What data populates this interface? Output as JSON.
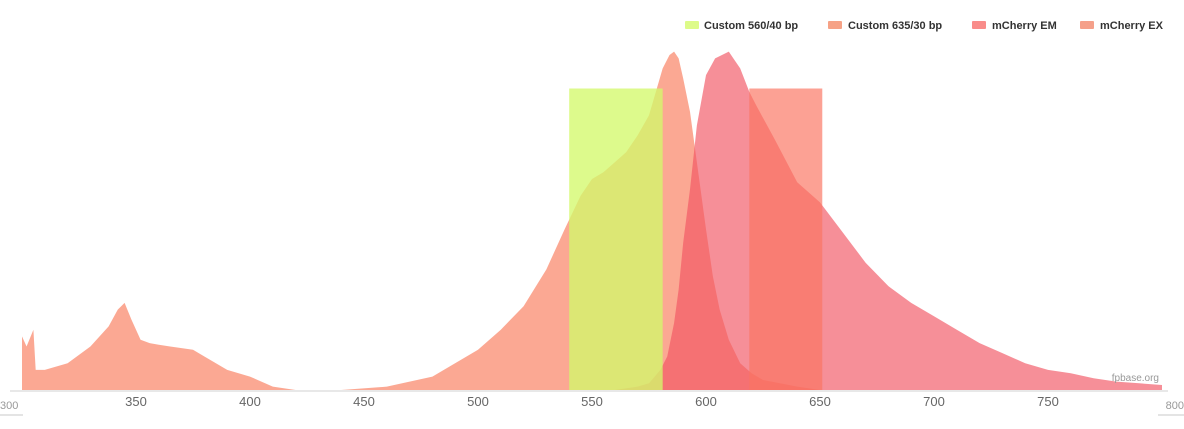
{
  "chart_data": {
    "type": "area",
    "title": "",
    "xlabel": "",
    "ylabel": "",
    "xlim": [
      300,
      800
    ],
    "ylim": [
      0,
      1
    ],
    "x_ticks": [
      350,
      400,
      450,
      500,
      550,
      600,
      650,
      700,
      750
    ],
    "x_edge_ticks": [
      300,
      800
    ],
    "grid": false,
    "legend_position": "top-right",
    "watermark": "fpbase.org",
    "series": [
      {
        "name": "mCherry EX",
        "kind": "curve",
        "color": "#f9866a",
        "opacity": 0.72,
        "points": [
          [
            300,
            0.16
          ],
          [
            302,
            0.13
          ],
          [
            305,
            0.18
          ],
          [
            306,
            0.06
          ],
          [
            310,
            0.06
          ],
          [
            320,
            0.08
          ],
          [
            330,
            0.13
          ],
          [
            338,
            0.19
          ],
          [
            342,
            0.24
          ],
          [
            345,
            0.26
          ],
          [
            348,
            0.21
          ],
          [
            352,
            0.15
          ],
          [
            356,
            0.14
          ],
          [
            360,
            0.135
          ],
          [
            365,
            0.13
          ],
          [
            375,
            0.12
          ],
          [
            380,
            0.1
          ],
          [
            390,
            0.06
          ],
          [
            400,
            0.04
          ],
          [
            410,
            0.01
          ],
          [
            420,
            0.0
          ],
          [
            440,
            0.0
          ],
          [
            460,
            0.01
          ],
          [
            480,
            0.04
          ],
          [
            500,
            0.12
          ],
          [
            510,
            0.18
          ],
          [
            520,
            0.25
          ],
          [
            530,
            0.36
          ],
          [
            538,
            0.48
          ],
          [
            545,
            0.58
          ],
          [
            550,
            0.63
          ],
          [
            555,
            0.65
          ],
          [
            560,
            0.68
          ],
          [
            565,
            0.71
          ],
          [
            570,
            0.76
          ],
          [
            575,
            0.82
          ],
          [
            578,
            0.89
          ],
          [
            581,
            0.96
          ],
          [
            584,
            1.0
          ],
          [
            586,
            1.01
          ],
          [
            588,
            0.99
          ],
          [
            590,
            0.93
          ],
          [
            593,
            0.83
          ],
          [
            596,
            0.68
          ],
          [
            600,
            0.48
          ],
          [
            603,
            0.34
          ],
          [
            606,
            0.24
          ],
          [
            610,
            0.15
          ],
          [
            615,
            0.08
          ],
          [
            620,
            0.05
          ],
          [
            625,
            0.03
          ],
          [
            640,
            0.01
          ],
          [
            650,
            0.0
          ]
        ]
      },
      {
        "name": "mCherry EM",
        "kind": "curve",
        "color": "#f25562",
        "opacity": 0.66,
        "points": [
          [
            540,
            0.0
          ],
          [
            560,
            0.0
          ],
          [
            570,
            0.01
          ],
          [
            575,
            0.02
          ],
          [
            580,
            0.06
          ],
          [
            583,
            0.1
          ],
          [
            586,
            0.2
          ],
          [
            588,
            0.3
          ],
          [
            590,
            0.44
          ],
          [
            593,
            0.6
          ],
          [
            596,
            0.79
          ],
          [
            600,
            0.94
          ],
          [
            604,
            0.99
          ],
          [
            607,
            1.0
          ],
          [
            610,
            1.01
          ],
          [
            612,
            0.99
          ],
          [
            615,
            0.96
          ],
          [
            619,
            0.89
          ],
          [
            622,
            0.85
          ],
          [
            630,
            0.75
          ],
          [
            640,
            0.62
          ],
          [
            650,
            0.56
          ],
          [
            660,
            0.47
          ],
          [
            670,
            0.38
          ],
          [
            680,
            0.31
          ],
          [
            690,
            0.26
          ],
          [
            700,
            0.22
          ],
          [
            710,
            0.18
          ],
          [
            720,
            0.14
          ],
          [
            730,
            0.11
          ],
          [
            740,
            0.08
          ],
          [
            750,
            0.06
          ],
          [
            760,
            0.05
          ],
          [
            770,
            0.035
          ],
          [
            780,
            0.025
          ],
          [
            790,
            0.02
          ],
          [
            800,
            0.015
          ]
        ]
      },
      {
        "name": "Custom 560/40 bp",
        "kind": "band",
        "color": "#d4f86c",
        "opacity": 0.78,
        "start": 540,
        "end": 581,
        "value": 0.9
      },
      {
        "name": "Custom 635/30 bp",
        "kind": "band",
        "color": "#fb7561",
        "opacity": 0.68,
        "start": 619,
        "end": 651,
        "value": 0.9
      }
    ]
  },
  "legend": [
    {
      "label": "Custom 560/40 bp",
      "color": "#ddfb89"
    },
    {
      "label": "Custom 635/30 bp",
      "color": "#f6a286"
    },
    {
      "label": "mCherry EM",
      "color": "#f98c8a"
    },
    {
      "label": "mCherry EX",
      "color": "#f5a08a"
    }
  ]
}
